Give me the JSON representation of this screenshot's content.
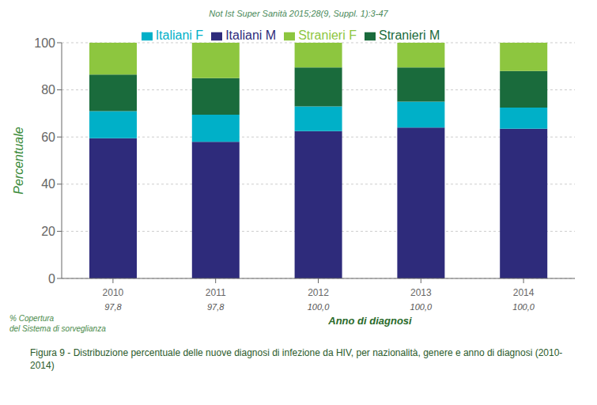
{
  "chart_data": {
    "type": "bar",
    "title": "Figura 9 - Distribuzione percentuale delle nuove diagnosi di infezione da HIV, per nazionalità, genere e anno di diagnosi (2010-2014)",
    "subtitle": "Not Ist Super Sanità 2015;28(9, Suppl. 1):3-47",
    "xlabel": "Anno di diagnosi",
    "ylabel": "Percentuale",
    "categories": [
      "2010",
      "2011",
      "2012",
      "2013",
      "2014"
    ],
    "series": [
      {
        "name": "Italiani M",
        "color": "#2e2b7b",
        "values": [
          59.5,
          58.0,
          62.5,
          64.0,
          63.5
        ]
      },
      {
        "name": "Italiani F",
        "color": "#00b0c8",
        "values": [
          11.5,
          11.5,
          10.5,
          11.0,
          9.0
        ]
      },
      {
        "name": "Stranieri M",
        "color": "#1a6b3c",
        "values": [
          15.5,
          15.5,
          16.5,
          14.5,
          15.5
        ]
      },
      {
        "name": "Stranieri F",
        "color": "#8dc63f",
        "values": [
          13.5,
          15.0,
          10.5,
          10.5,
          12.0
        ]
      }
    ],
    "stacked": true,
    "ylim": [
      0,
      100
    ],
    "yticks": [
      0,
      20,
      40,
      60,
      80,
      100
    ],
    "grid": true,
    "legend": "top",
    "annotations": [
      {
        "text": "% Copertura\ndel Sistema di sorveglianza"
      },
      {
        "text": "97,8",
        "category": "2010"
      },
      {
        "text": "97,8",
        "category": "2011"
      },
      {
        "text": "100,0",
        "category": "2012"
      },
      {
        "text": "100,0",
        "category": "2013"
      },
      {
        "text": "100,0",
        "category": "2014"
      }
    ]
  }
}
